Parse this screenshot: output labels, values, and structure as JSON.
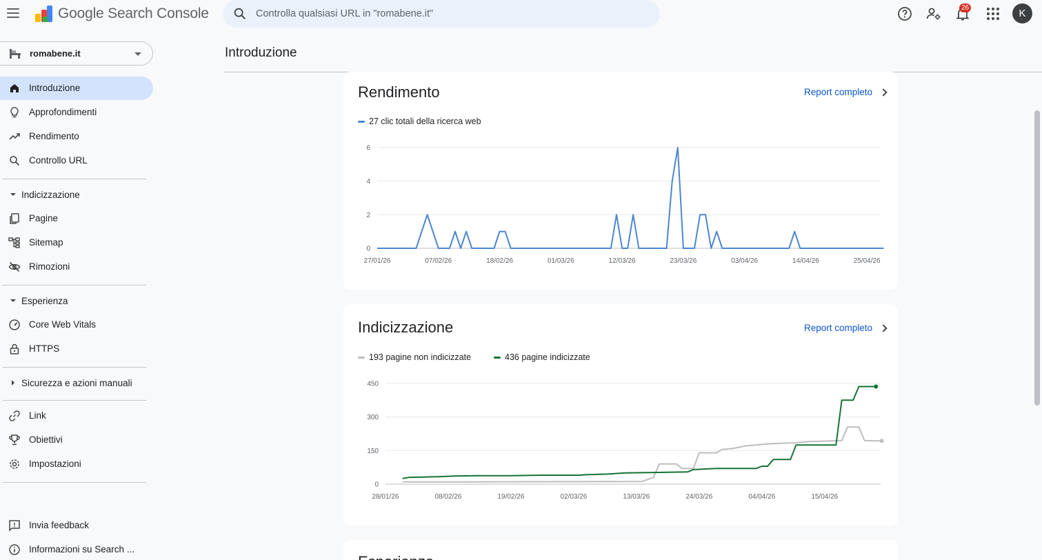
{
  "app": {
    "title": "Google Search Console",
    "search_placeholder": "Controlla qualsiasi URL in \"romabene.it\"",
    "notification_count": "26",
    "avatar_letter": "K"
  },
  "sidebar": {
    "property": "romabene.it",
    "items_top": [
      {
        "label": "Introduzione",
        "icon": "home-icon",
        "active": true
      },
      {
        "label": "Approfondimenti",
        "icon": "lightbulb-icon"
      },
      {
        "label": "Rendimento",
        "icon": "trending-up-icon"
      },
      {
        "label": "Controllo URL",
        "icon": "search-icon"
      }
    ],
    "section_indexing": "Indicizzazione",
    "items_indexing": [
      {
        "label": "Pagine",
        "icon": "pages-icon"
      },
      {
        "label": "Sitemap",
        "icon": "sitemap-icon"
      },
      {
        "label": "Rimozioni",
        "icon": "eye-off-icon"
      }
    ],
    "section_experience": "Esperienza",
    "items_experience": [
      {
        "label": "Core Web Vitals",
        "icon": "speed-icon"
      },
      {
        "label": "HTTPS",
        "icon": "lock-icon"
      }
    ],
    "section_security": "Sicurezza e azioni manuali",
    "items_bottom": [
      {
        "label": "Link",
        "icon": "link-icon"
      },
      {
        "label": "Obiettivi",
        "icon": "trophy-icon"
      },
      {
        "label": "Impostazioni",
        "icon": "gear-icon"
      }
    ],
    "footer_items": [
      {
        "label": "Invia feedback",
        "icon": "feedback-icon"
      },
      {
        "label": "Informazioni su Search ...",
        "icon": "info-icon"
      }
    ]
  },
  "main": {
    "title": "Introduzione",
    "performance_card": {
      "title": "Rendimento",
      "link": "Report completo"
    },
    "indexing_card": {
      "title": "Indicizzazione",
      "link": "Report completo"
    },
    "next_card_title": "Esperienza"
  },
  "colors": {
    "clicks": "#4a86d0",
    "not_indexed": "#bdbdbd",
    "indexed": "#137333",
    "accent": "#0b57d0"
  },
  "chart_data": [
    {
      "type": "line",
      "legend": [
        "27 clic totali della ricerca web"
      ],
      "xlabels": [
        "27/01/26",
        "07/02/26",
        "18/02/26",
        "01/03/26",
        "12/03/26",
        "23/03/26",
        "03/04/26",
        "14/04/26",
        "25/04/26"
      ],
      "yticks": [
        0,
        2,
        4,
        6
      ],
      "ylim": [
        0,
        6
      ],
      "x_start": "2026-01-27",
      "series": [
        {
          "name": "27 clic totali della ricerca web",
          "points": [
            [
              "2026-01-27",
              0
            ],
            [
              "2026-02-03",
              0
            ],
            [
              "2026-02-05",
              2
            ],
            [
              "2026-02-07",
              0
            ],
            [
              "2026-02-09",
              0
            ],
            [
              "2026-02-10",
              1
            ],
            [
              "2026-02-11",
              0
            ],
            [
              "2026-02-12",
              1
            ],
            [
              "2026-02-13",
              0
            ],
            [
              "2026-02-17",
              0
            ],
            [
              "2026-02-18",
              1
            ],
            [
              "2026-02-19",
              1
            ],
            [
              "2026-02-20",
              0
            ],
            [
              "2026-03-10",
              0
            ],
            [
              "2026-03-11",
              2
            ],
            [
              "2026-03-12",
              0
            ],
            [
              "2026-03-13",
              0
            ],
            [
              "2026-03-14",
              2
            ],
            [
              "2026-03-15",
              0
            ],
            [
              "2026-03-20",
              0
            ],
            [
              "2026-03-21",
              4
            ],
            [
              "2026-03-22",
              6
            ],
            [
              "2026-03-23",
              0
            ],
            [
              "2026-03-25",
              0
            ],
            [
              "2026-03-26",
              2
            ],
            [
              "2026-03-27",
              2
            ],
            [
              "2026-03-28",
              0
            ],
            [
              "2026-03-29",
              1
            ],
            [
              "2026-03-30",
              0
            ],
            [
              "2026-04-11",
              0
            ],
            [
              "2026-04-12",
              1
            ],
            [
              "2026-04-13",
              0
            ],
            [
              "2026-04-28",
              0
            ]
          ]
        }
      ]
    },
    {
      "type": "line",
      "legend": [
        "193 pagine non indicizzate",
        "436 pagine indicizzate"
      ],
      "xlabels": [
        "28/01/26",
        "08/02/26",
        "19/02/26",
        "02/03/26",
        "13/03/26",
        "24/03/26",
        "04/04/26",
        "15/04/26"
      ],
      "yticks": [
        0,
        150,
        300,
        450
      ],
      "ylim": [
        0,
        450
      ],
      "x_start": "2026-01-28",
      "series": [
        {
          "name": "193 pagine non indicizzate",
          "points": [
            [
              "2026-01-31",
              10
            ],
            [
              "2026-02-10",
              10
            ],
            [
              "2026-03-14",
              12
            ],
            [
              "2026-03-16",
              30
            ],
            [
              "2026-03-17",
              90
            ],
            [
              "2026-03-20",
              90
            ],
            [
              "2026-03-21",
              70
            ],
            [
              "2026-03-23",
              70
            ],
            [
              "2026-03-24",
              140
            ],
            [
              "2026-03-27",
              140
            ],
            [
              "2026-03-28",
              155
            ],
            [
              "2026-03-30",
              160
            ],
            [
              "2026-04-01",
              170
            ],
            [
              "2026-04-03",
              175
            ],
            [
              "2026-04-05",
              180
            ],
            [
              "2026-04-10",
              185
            ],
            [
              "2026-04-12",
              190
            ],
            [
              "2026-04-18",
              195
            ],
            [
              "2026-04-19",
              255
            ],
            [
              "2026-04-21",
              255
            ],
            [
              "2026-04-22",
              195
            ],
            [
              "2026-04-25",
              193
            ]
          ]
        },
        {
          "name": "436 pagine indicizzate",
          "points": [
            [
              "2026-01-31",
              25
            ],
            [
              "2026-02-01",
              30
            ],
            [
              "2026-02-06",
              33
            ],
            [
              "2026-02-09",
              36
            ],
            [
              "2026-02-13",
              38
            ],
            [
              "2026-02-19",
              38
            ],
            [
              "2026-02-25",
              40
            ],
            [
              "2026-03-03",
              40
            ],
            [
              "2026-03-04",
              42
            ],
            [
              "2026-03-08",
              45
            ],
            [
              "2026-03-11",
              50
            ],
            [
              "2026-03-16",
              52
            ],
            [
              "2026-03-22",
              55
            ],
            [
              "2026-03-23",
              65
            ],
            [
              "2026-03-27",
              70
            ],
            [
              "2026-04-03",
              70
            ],
            [
              "2026-04-04",
              80
            ],
            [
              "2026-04-05",
              80
            ],
            [
              "2026-04-06",
              110
            ],
            [
              "2026-04-09",
              110
            ],
            [
              "2026-04-10",
              175
            ],
            [
              "2026-04-17",
              175
            ],
            [
              "2026-04-18",
              375
            ],
            [
              "2026-04-20",
              375
            ],
            [
              "2026-04-21",
              436
            ],
            [
              "2026-04-24",
              436
            ]
          ]
        }
      ]
    }
  ]
}
